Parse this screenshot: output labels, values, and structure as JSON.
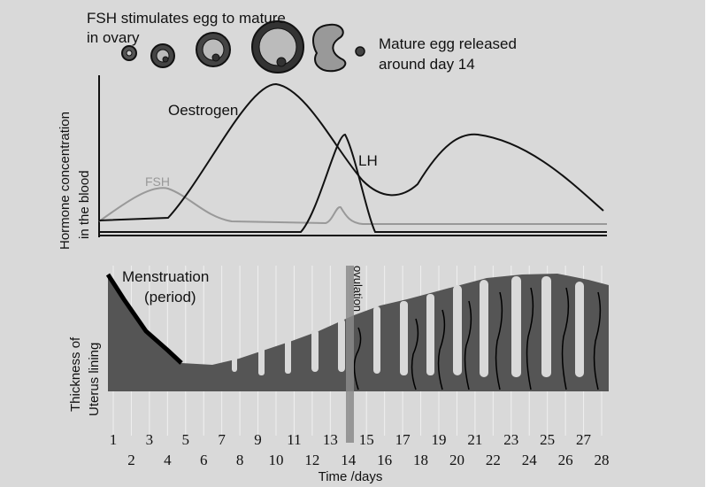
{
  "egg_caption": [
    "FSH stimulates egg to mature",
    "in ovary"
  ],
  "release_caption": [
    "Mature egg released",
    "around day 14"
  ],
  "hormone_panel": {
    "y_label": [
      "Hormone concentration",
      "in the blood"
    ],
    "curve_labels": {
      "oestrogen": "Oestrogen",
      "fsh": "FSH",
      "lh": "LH"
    }
  },
  "uterus_panel": {
    "y_label": [
      "Thickness of",
      "Uterus lining"
    ],
    "menstruation": [
      "Menstruation",
      "(period)"
    ],
    "ovulation": "ovulation"
  },
  "days": [
    1,
    2,
    3,
    4,
    5,
    6,
    7,
    8,
    9,
    10,
    11,
    12,
    13,
    14,
    15,
    16,
    17,
    18,
    19,
    20,
    21,
    22,
    23,
    24,
    25,
    26,
    27,
    28
  ],
  "x_label": "Time /days"
}
